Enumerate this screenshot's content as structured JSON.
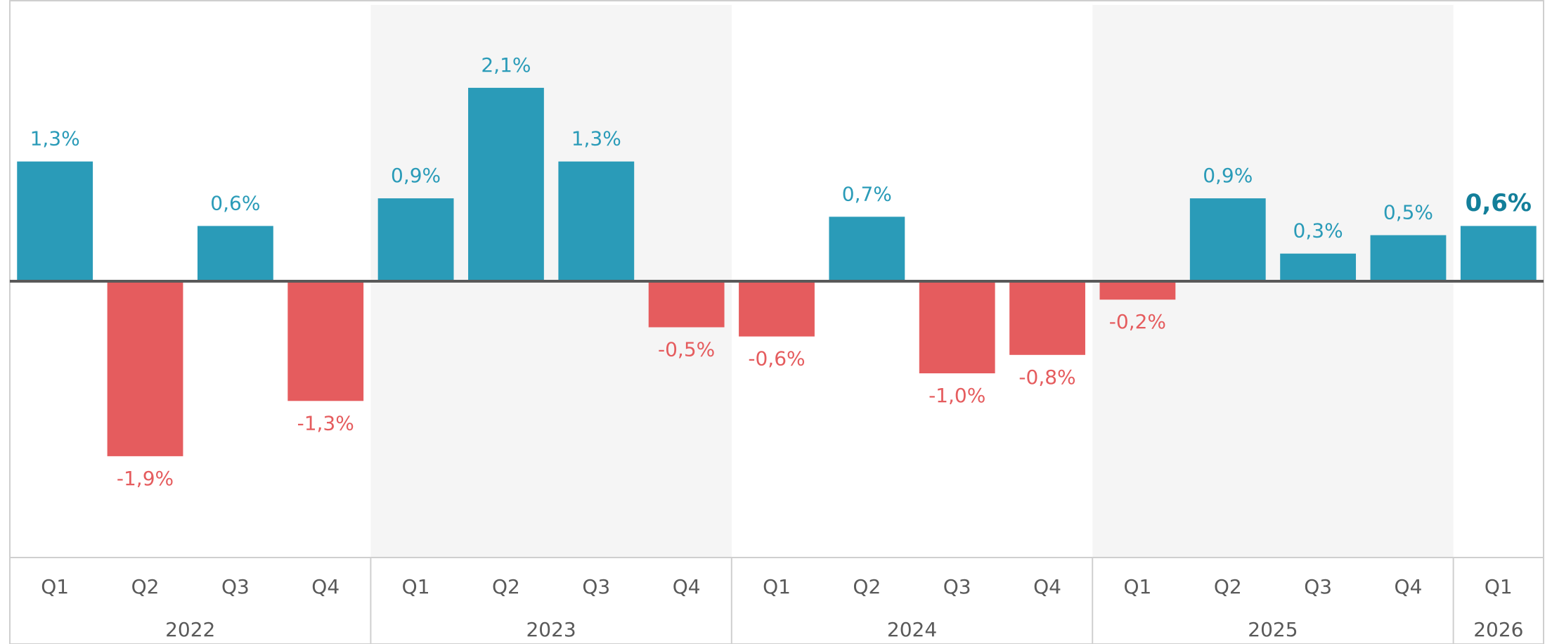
{
  "chart_data": {
    "type": "bar",
    "groups": [
      {
        "name": "2022",
        "categories": [
          "Q1",
          "Q2",
          "Q3",
          "Q4"
        ],
        "values": [
          1.3,
          -1.9,
          0.6,
          -1.3
        ],
        "value_labels": [
          "1,3%",
          "-1,9%",
          "0,6%",
          "-1,3%"
        ]
      },
      {
        "name": "2023",
        "categories": [
          "Q1",
          "Q2",
          "Q3",
          "Q4"
        ],
        "values": [
          0.9,
          2.1,
          1.3,
          -0.5
        ],
        "value_labels": [
          "0,9%",
          "2,1%",
          "1,3%",
          "-0,5%"
        ]
      },
      {
        "name": "2024",
        "categories": [
          "Q1",
          "Q2",
          "Q3",
          "Q4"
        ],
        "values": [
          -0.6,
          0.7,
          -1.0,
          -0.8
        ],
        "value_labels": [
          "-0,6%",
          "0,7%",
          "-1,0%",
          "-0,8%"
        ]
      },
      {
        "name": "2025",
        "categories": [
          "Q1",
          "Q2",
          "Q3",
          "Q4"
        ],
        "values": [
          -0.2,
          0.9,
          0.3,
          0.5
        ],
        "value_labels": [
          "-0,2%",
          "0,9%",
          "0,3%",
          "0,5%"
        ]
      },
      {
        "name": "2026",
        "categories": [
          "Q1"
        ],
        "values": [
          0.6
        ],
        "value_labels": [
          "0,6%"
        ]
      }
    ],
    "positive_color": "#2a9bb8",
    "negative_color": "#e55c5e",
    "highlight_color": "#137f9a",
    "ylim": [
      -3,
      3
    ]
  }
}
